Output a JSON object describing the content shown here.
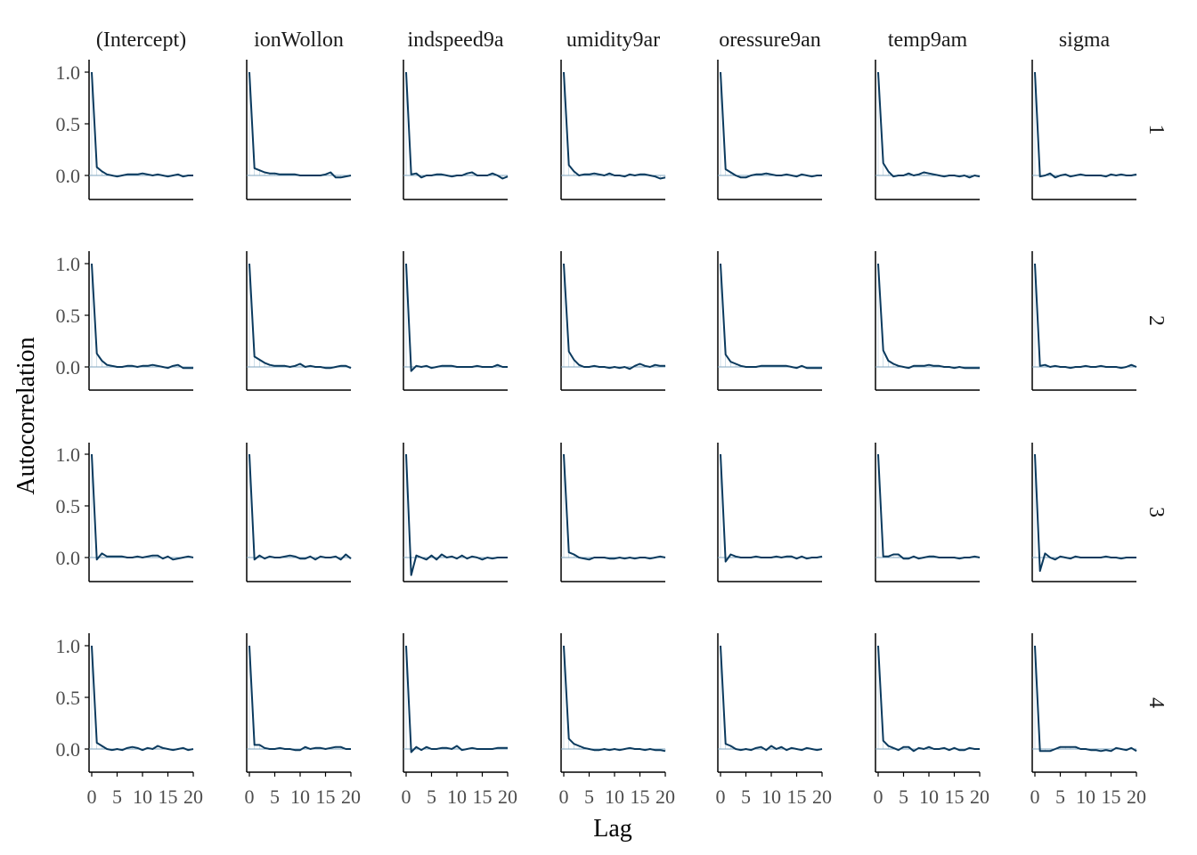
{
  "chart_data": {
    "type": "line",
    "chart_kind": "autocorrelation facet grid",
    "xlabel": "Lag",
    "ylabel": "Autocorrelation",
    "column_labels": [
      "(Intercept)",
      "ionWollon",
      "indspeed9a",
      "umidity9ar",
      "oressure9an",
      "temp9am",
      "sigma"
    ],
    "row_labels": [
      "1",
      "2",
      "3",
      "4"
    ],
    "x_ticks": [
      0,
      5,
      10,
      15,
      20
    ],
    "x_tick_labels": [
      "0",
      "5",
      "10",
      "15",
      "20"
    ],
    "y_ticks": [
      0.0,
      0.5,
      1.0
    ],
    "y_tick_labels": [
      "0.0",
      "0.5",
      "1.0"
    ],
    "xlim": [
      0,
      20
    ],
    "ylim": [
      -0.2,
      1.0
    ],
    "grid": false,
    "colors": {
      "line": "#0b3a5e",
      "zero_line": "#7fa6bf",
      "axis": "#000000",
      "text": "#4d4d4d"
    },
    "panels": [
      [
        {
          "row": "1",
          "col": "(Intercept)",
          "y": [
            1.0,
            0.08,
            0.04,
            0.01,
            0.0,
            -0.01,
            0.0,
            0.01,
            0.01,
            0.01,
            0.02,
            0.01,
            0.0,
            0.01,
            0.0,
            -0.01,
            0.0,
            0.01,
            -0.01,
            0.0,
            0.0
          ]
        },
        {
          "row": "1",
          "col": "ionWollon",
          "y": [
            1.0,
            0.07,
            0.05,
            0.03,
            0.02,
            0.02,
            0.01,
            0.01,
            0.01,
            0.01,
            0.0,
            0.0,
            0.0,
            0.0,
            0.0,
            0.01,
            0.03,
            -0.02,
            -0.02,
            -0.01,
            0.0
          ]
        },
        {
          "row": "1",
          "col": "indspeed9a",
          "y": [
            1.0,
            0.01,
            0.02,
            -0.02,
            0.0,
            0.0,
            0.01,
            0.01,
            0.0,
            -0.01,
            0.0,
            0.0,
            0.02,
            0.03,
            0.0,
            0.0,
            0.0,
            0.02,
            0.0,
            -0.03,
            -0.01
          ]
        },
        {
          "row": "1",
          "col": "umidity9ar",
          "y": [
            1.0,
            0.1,
            0.04,
            0.0,
            0.01,
            0.01,
            0.02,
            0.01,
            0.0,
            0.02,
            0.0,
            0.0,
            -0.01,
            0.01,
            0.0,
            0.01,
            0.01,
            0.0,
            -0.01,
            -0.03,
            -0.02
          ]
        },
        {
          "row": "1",
          "col": "oressure9an",
          "y": [
            1.0,
            0.06,
            0.03,
            0.0,
            -0.02,
            -0.02,
            0.0,
            0.01,
            0.01,
            0.02,
            0.01,
            0.0,
            0.0,
            0.01,
            0.0,
            -0.01,
            0.01,
            0.0,
            -0.01,
            0.0,
            0.0
          ]
        },
        {
          "row": "1",
          "col": "temp9am",
          "y": [
            1.0,
            0.12,
            0.04,
            -0.01,
            0.0,
            0.0,
            0.02,
            0.0,
            0.01,
            0.03,
            0.02,
            0.01,
            0.0,
            -0.01,
            0.0,
            0.0,
            -0.01,
            0.0,
            -0.02,
            0.0,
            -0.01
          ]
        },
        {
          "row": "1",
          "col": "sigma",
          "y": [
            1.0,
            -0.01,
            0.0,
            0.02,
            -0.02,
            0.0,
            0.01,
            -0.01,
            0.0,
            0.01,
            0.0,
            0.0,
            0.0,
            0.0,
            -0.01,
            0.01,
            0.0,
            0.01,
            0.0,
            0.0,
            0.01
          ]
        }
      ],
      [
        {
          "row": "2",
          "col": "(Intercept)",
          "y": [
            1.0,
            0.13,
            0.06,
            0.02,
            0.01,
            0.0,
            0.0,
            0.01,
            0.01,
            0.0,
            0.01,
            0.01,
            0.02,
            0.01,
            0.0,
            -0.01,
            0.01,
            0.02,
            -0.01,
            -0.01,
            -0.01
          ]
        },
        {
          "row": "2",
          "col": "ionWollon",
          "y": [
            1.0,
            0.1,
            0.07,
            0.04,
            0.02,
            0.01,
            0.01,
            0.01,
            0.0,
            0.01,
            0.03,
            0.0,
            0.01,
            0.0,
            0.0,
            -0.01,
            -0.01,
            0.0,
            0.01,
            0.01,
            -0.01
          ]
        },
        {
          "row": "2",
          "col": "indspeed9a",
          "y": [
            1.0,
            -0.04,
            0.01,
            0.0,
            0.01,
            -0.01,
            0.0,
            0.01,
            0.01,
            0.01,
            0.0,
            0.0,
            0.0,
            0.0,
            0.01,
            0.0,
            0.0,
            0.0,
            0.02,
            0.0,
            0.0
          ]
        },
        {
          "row": "2",
          "col": "umidity9ar",
          "y": [
            1.0,
            0.15,
            0.07,
            0.02,
            0.0,
            0.0,
            0.01,
            0.0,
            0.0,
            -0.01,
            0.0,
            -0.01,
            0.0,
            -0.02,
            0.01,
            0.03,
            0.01,
            0.0,
            0.02,
            0.01,
            0.01
          ]
        },
        {
          "row": "2",
          "col": "oressure9an",
          "y": [
            1.0,
            0.12,
            0.05,
            0.03,
            0.01,
            0.0,
            0.0,
            0.0,
            0.01,
            0.01,
            0.01,
            0.01,
            0.01,
            0.01,
            0.0,
            -0.01,
            0.01,
            -0.01,
            -0.01,
            -0.01,
            -0.01
          ]
        },
        {
          "row": "2",
          "col": "temp9am",
          "y": [
            1.0,
            0.16,
            0.06,
            0.03,
            0.01,
            0.0,
            -0.01,
            0.01,
            0.01,
            0.01,
            0.02,
            0.01,
            0.01,
            0.0,
            0.0,
            -0.01,
            0.0,
            -0.01,
            -0.01,
            -0.01,
            -0.01
          ]
        },
        {
          "row": "2",
          "col": "sigma",
          "y": [
            1.0,
            0.01,
            0.02,
            0.0,
            0.01,
            0.0,
            0.0,
            -0.01,
            0.0,
            0.0,
            0.01,
            0.0,
            0.0,
            0.01,
            0.0,
            0.0,
            0.0,
            -0.01,
            0.0,
            0.02,
            0.0
          ]
        }
      ],
      [
        {
          "row": "3",
          "col": "(Intercept)",
          "y": [
            1.0,
            -0.02,
            0.04,
            0.01,
            0.01,
            0.01,
            0.01,
            0.0,
            0.0,
            0.01,
            0.0,
            0.01,
            0.02,
            0.02,
            -0.01,
            0.01,
            -0.02,
            -0.01,
            0.0,
            0.01,
            0.0
          ]
        },
        {
          "row": "3",
          "col": "ionWollon",
          "y": [
            1.0,
            -0.02,
            0.02,
            -0.01,
            0.01,
            0.0,
            0.0,
            0.01,
            0.02,
            0.01,
            -0.01,
            -0.01,
            0.01,
            -0.02,
            0.01,
            0.0,
            0.0,
            0.01,
            -0.02,
            0.03,
            -0.01
          ]
        },
        {
          "row": "3",
          "col": "indspeed9a",
          "y": [
            1.0,
            -0.17,
            0.02,
            0.0,
            -0.02,
            0.02,
            -0.02,
            0.03,
            0.0,
            0.01,
            -0.01,
            0.02,
            -0.01,
            0.01,
            0.0,
            -0.02,
            0.0,
            -0.01,
            0.0,
            0.0,
            0.0
          ]
        },
        {
          "row": "3",
          "col": "umidity9ar",
          "y": [
            1.0,
            0.05,
            0.03,
            0.0,
            -0.01,
            -0.02,
            0.0,
            0.0,
            0.0,
            -0.01,
            -0.01,
            0.0,
            -0.01,
            0.0,
            -0.01,
            0.0,
            0.0,
            -0.01,
            0.0,
            0.01,
            0.0
          ]
        },
        {
          "row": "3",
          "col": "oressure9an",
          "y": [
            1.0,
            -0.04,
            0.03,
            0.01,
            0.0,
            0.0,
            0.0,
            0.01,
            0.0,
            0.0,
            0.0,
            0.01,
            0.0,
            0.01,
            0.01,
            -0.01,
            0.01,
            -0.01,
            0.0,
            0.0,
            0.01
          ]
        },
        {
          "row": "3",
          "col": "temp9am",
          "y": [
            1.0,
            0.01,
            0.01,
            0.03,
            0.03,
            -0.01,
            -0.01,
            0.01,
            -0.01,
            0.0,
            0.01,
            0.01,
            0.0,
            0.0,
            0.0,
            0.0,
            -0.01,
            0.0,
            0.0,
            0.01,
            0.0
          ]
        },
        {
          "row": "3",
          "col": "sigma",
          "y": [
            1.0,
            -0.13,
            0.04,
            0.0,
            -0.02,
            0.01,
            0.0,
            -0.01,
            0.01,
            0.0,
            0.0,
            0.0,
            0.0,
            0.0,
            0.01,
            0.0,
            0.0,
            -0.01,
            0.0,
            0.0,
            0.0
          ]
        }
      ],
      [
        {
          "row": "4",
          "col": "(Intercept)",
          "y": [
            1.0,
            0.06,
            0.03,
            0.0,
            -0.01,
            0.0,
            -0.01,
            0.01,
            0.02,
            0.01,
            -0.01,
            0.01,
            0.0,
            0.03,
            0.01,
            0.0,
            -0.01,
            0.0,
            0.01,
            -0.01,
            0.0
          ]
        },
        {
          "row": "4",
          "col": "ionWollon",
          "y": [
            1.0,
            0.04,
            0.04,
            0.01,
            0.0,
            0.0,
            0.01,
            0.0,
            0.0,
            -0.01,
            -0.01,
            0.02,
            0.0,
            0.01,
            0.01,
            0.0,
            0.01,
            0.02,
            0.02,
            0.0,
            0.0
          ]
        },
        {
          "row": "4",
          "col": "indspeed9a",
          "y": [
            1.0,
            -0.03,
            0.02,
            -0.01,
            0.02,
            0.0,
            0.0,
            0.01,
            0.01,
            0.0,
            0.03,
            -0.01,
            0.0,
            0.01,
            0.0,
            0.0,
            0.0,
            0.0,
            0.01,
            0.01,
            0.01
          ]
        },
        {
          "row": "4",
          "col": "umidity9ar",
          "y": [
            1.0,
            0.1,
            0.05,
            0.03,
            0.01,
            0.0,
            -0.01,
            -0.01,
            0.0,
            -0.01,
            0.0,
            -0.01,
            0.0,
            0.01,
            0.0,
            0.0,
            -0.01,
            0.0,
            -0.01,
            -0.01,
            -0.02
          ]
        },
        {
          "row": "4",
          "col": "oressure9an",
          "y": [
            1.0,
            0.05,
            0.03,
            0.0,
            -0.01,
            0.0,
            -0.01,
            0.01,
            0.02,
            -0.01,
            0.03,
            0.0,
            0.02,
            -0.01,
            0.01,
            0.0,
            -0.01,
            0.01,
            0.0,
            -0.01,
            0.0
          ]
        },
        {
          "row": "4",
          "col": "temp9am",
          "y": [
            1.0,
            0.08,
            0.03,
            0.01,
            -0.01,
            0.02,
            0.02,
            -0.02,
            0.01,
            0.0,
            0.02,
            0.0,
            0.0,
            0.01,
            -0.01,
            0.01,
            -0.01,
            -0.01,
            0.01,
            0.0,
            0.0
          ]
        },
        {
          "row": "4",
          "col": "sigma",
          "y": [
            1.0,
            -0.02,
            -0.02,
            -0.02,
            0.0,
            0.02,
            0.02,
            0.02,
            0.02,
            0.0,
            0.0,
            -0.01,
            -0.01,
            -0.02,
            -0.01,
            -0.02,
            0.01,
            0.0,
            -0.01,
            0.01,
            -0.02
          ]
        }
      ]
    ]
  }
}
